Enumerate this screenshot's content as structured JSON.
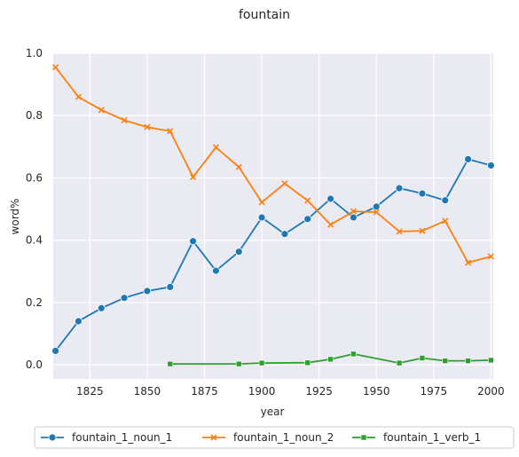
{
  "chart_data": {
    "type": "line",
    "title": "fountain",
    "xlabel": "year",
    "ylabel": "word%",
    "xlim": [
      1809,
      2001
    ],
    "ylim": [
      -0.045,
      1.0
    ],
    "xticks": [
      1825,
      1850,
      1875,
      1900,
      1925,
      1950,
      1975,
      2000
    ],
    "yticks": [
      0.0,
      0.2,
      0.4,
      0.6,
      0.8,
      1.0
    ],
    "xtick_labels": [
      "1825",
      "1850",
      "1875",
      "1900",
      "1925",
      "1950",
      "1975",
      "2000"
    ],
    "ytick_labels": [
      "0.0",
      "0.2",
      "0.4",
      "0.6",
      "0.8",
      "1.0"
    ],
    "grid": true,
    "legend_position": "bottom-center",
    "series": [
      {
        "name": "fountain_1_noun_1",
        "color": "#1f77b4",
        "marker": "circle",
        "x": [
          1810,
          1820,
          1830,
          1840,
          1850,
          1860,
          1870,
          1880,
          1890,
          1900,
          1910,
          1920,
          1930,
          1940,
          1950,
          1960,
          1970,
          1980,
          1990,
          2000
        ],
        "y": [
          0.045,
          0.14,
          0.182,
          0.215,
          0.237,
          0.25,
          0.397,
          0.302,
          0.363,
          0.473,
          0.42,
          0.468,
          0.533,
          0.473,
          0.508,
          0.567,
          0.55,
          0.528,
          0.66,
          0.64
        ]
      },
      {
        "name": "fountain_1_noun_2",
        "color": "#ff7f0e",
        "marker": "x",
        "x": [
          1810,
          1820,
          1830,
          1840,
          1850,
          1860,
          1870,
          1880,
          1890,
          1900,
          1910,
          1920,
          1930,
          1940,
          1950,
          1960,
          1970,
          1980,
          1990,
          2000
        ],
        "y": [
          0.955,
          0.86,
          0.818,
          0.785,
          0.763,
          0.75,
          0.603,
          0.698,
          0.635,
          0.522,
          0.582,
          0.527,
          0.45,
          0.493,
          0.49,
          0.428,
          0.43,
          0.462,
          0.328,
          0.348
        ]
      },
      {
        "name": "fountain_1_verb_1",
        "color": "#2ca02c",
        "marker": "square",
        "x": [
          1860,
          1890,
          1900,
          1920,
          1930,
          1940,
          1960,
          1970,
          1980,
          1990,
          2000
        ],
        "y": [
          0.003,
          0.003,
          0.006,
          0.007,
          0.018,
          0.035,
          0.006,
          0.022,
          0.013,
          0.013,
          0.015
        ]
      }
    ]
  }
}
